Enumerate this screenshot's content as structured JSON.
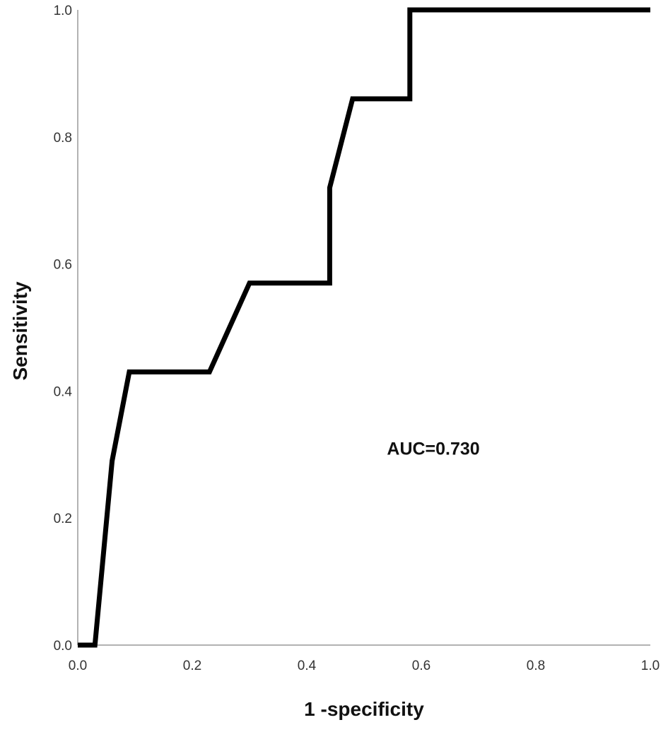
{
  "chart_data": {
    "type": "line",
    "title": "",
    "xlabel": "1 -specificity",
    "ylabel": "Sensitivity",
    "xlim": [
      0.0,
      1.0
    ],
    "ylim": [
      0.0,
      1.0
    ],
    "x_ticks": [
      "0.0",
      "0.2",
      "0.4",
      "0.6",
      "0.8",
      "1.0"
    ],
    "y_ticks": [
      "0.0",
      "0.2",
      "0.4",
      "0.6",
      "0.8",
      "1.0"
    ],
    "grid": false,
    "legend": "none",
    "series": [
      {
        "color": "#000000",
        "x": [
          0.0,
          0.03,
          0.06,
          0.09,
          0.23,
          0.3,
          0.44,
          0.44,
          0.48,
          0.58,
          0.58,
          1.0
        ],
        "y": [
          0.0,
          0.0,
          0.29,
          0.43,
          0.43,
          0.57,
          0.57,
          0.72,
          0.86,
          0.86,
          1.0,
          1.0
        ]
      }
    ],
    "annotations": [
      {
        "text": "AUC=0.730",
        "x": 0.54,
        "y": 0.31
      }
    ]
  }
}
